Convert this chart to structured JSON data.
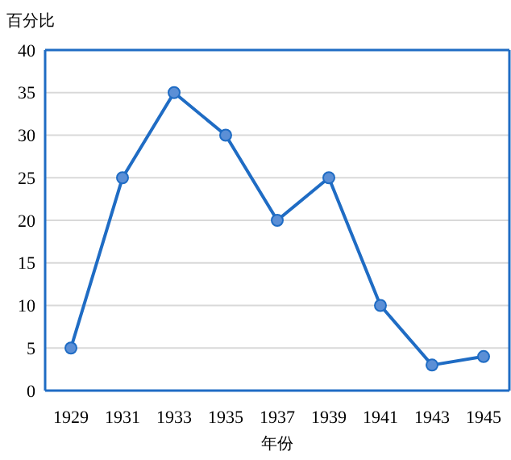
{
  "chart_data": {
    "type": "line",
    "ylabel": "百分比",
    "xlabel": "年份",
    "categories": [
      "1929",
      "1931",
      "1933",
      "1935",
      "1937",
      "1939",
      "1941",
      "1943",
      "1945"
    ],
    "series": [
      {
        "color": "#1f6cc4",
        "values": [
          5,
          25,
          35,
          30,
          20,
          25,
          10,
          3,
          4
        ]
      }
    ],
    "ylim": [
      0,
      40
    ],
    "yticks": [
      0,
      5,
      10,
      15,
      20,
      25,
      30,
      35,
      40
    ],
    "grid": "y",
    "marker": "circle",
    "line_style": "solid"
  }
}
